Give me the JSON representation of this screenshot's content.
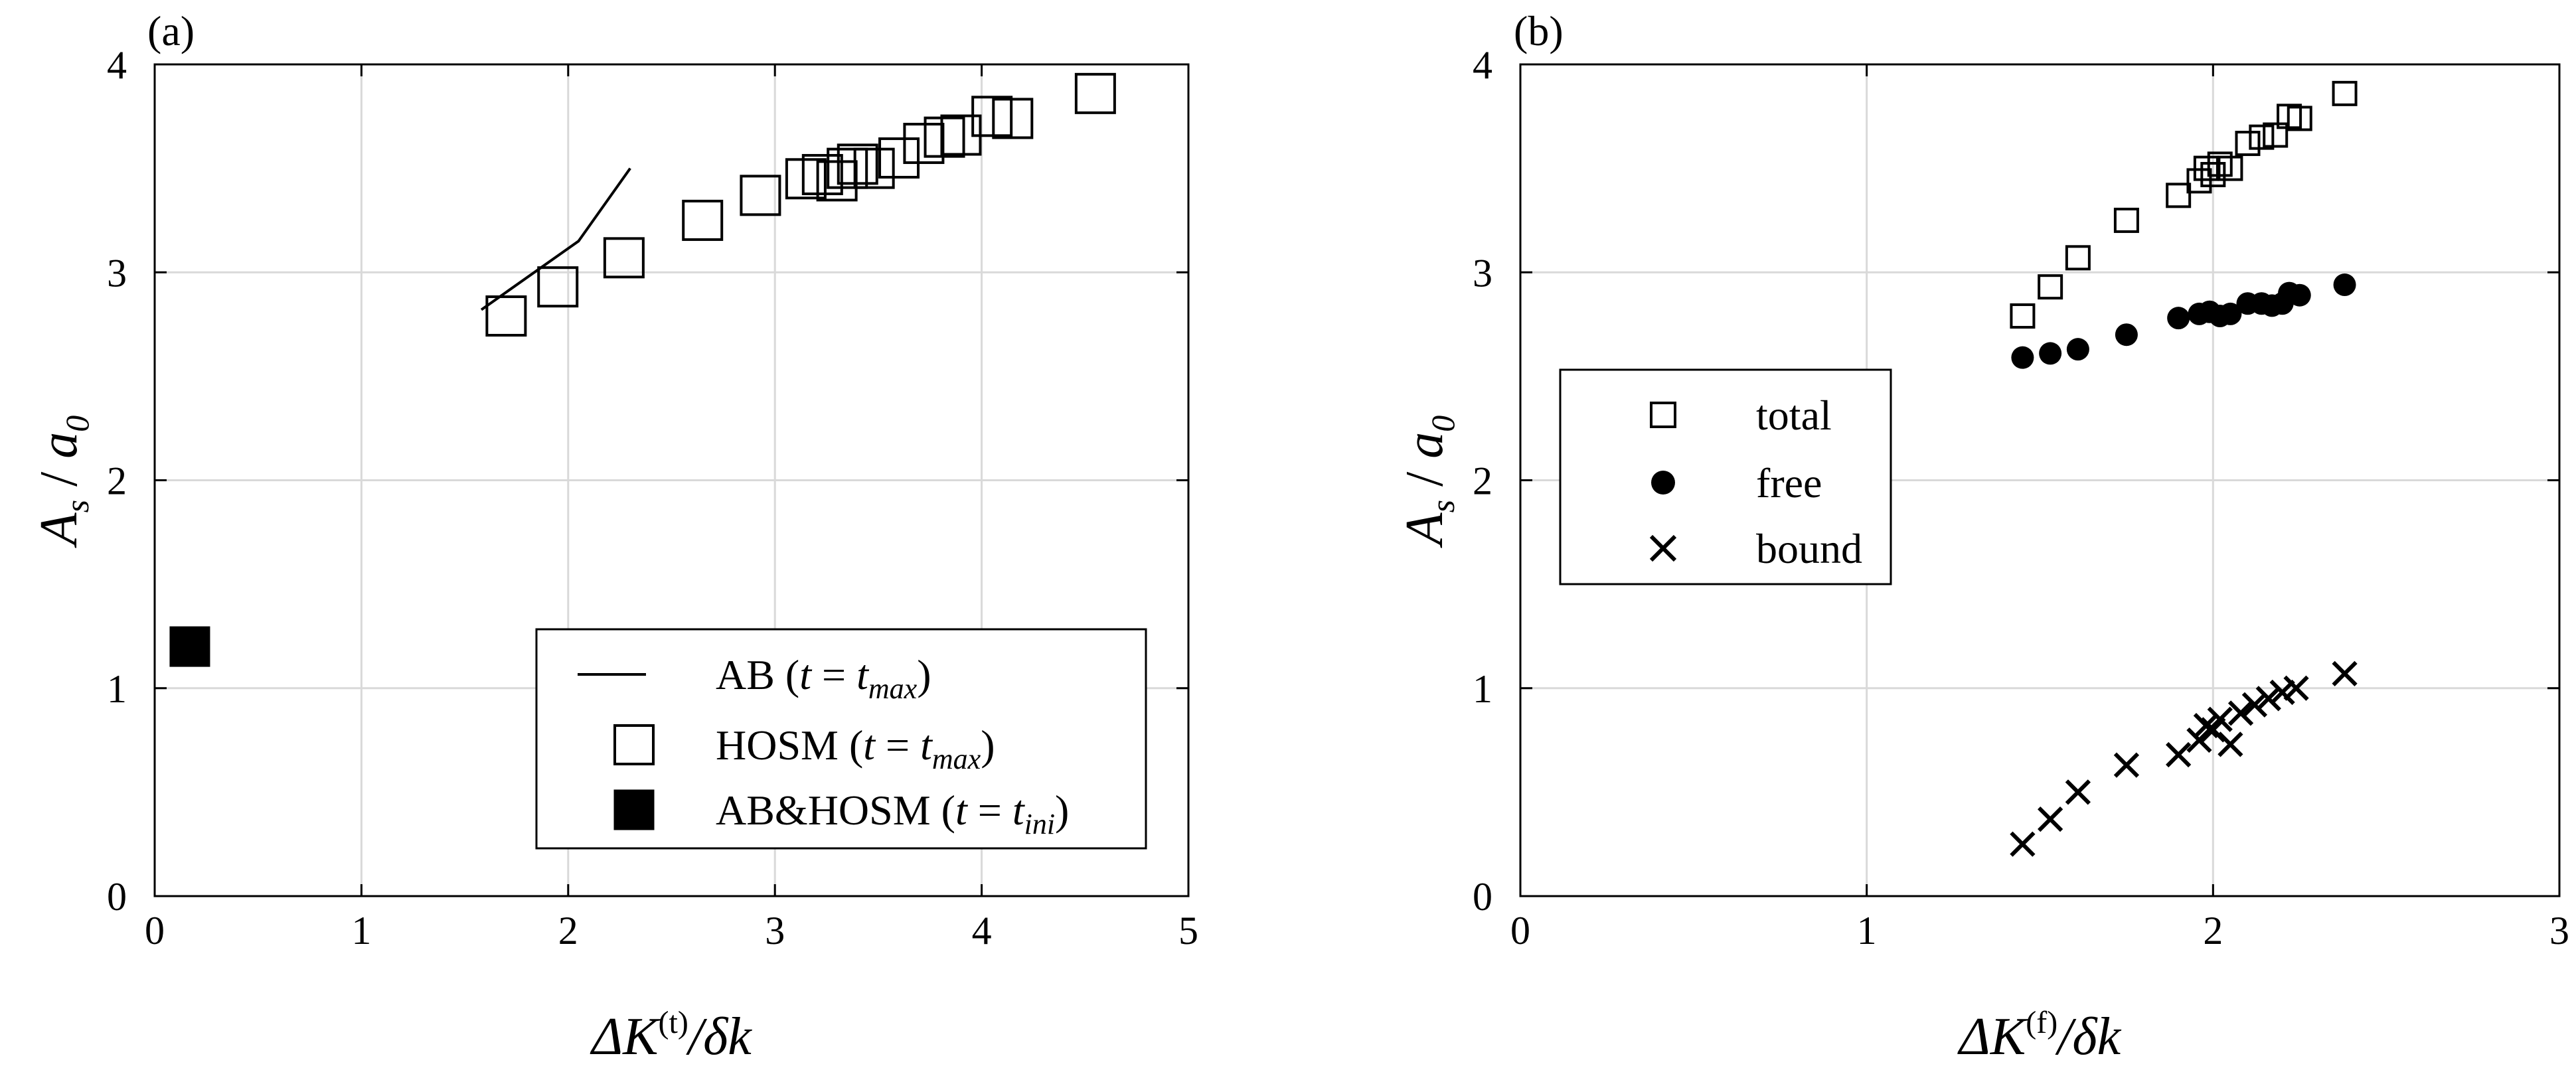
{
  "chart_data": [
    {
      "type": "scatter",
      "panel_label": "(a)",
      "xlabel": {
        "main": "ΔK",
        "sup": "(t)",
        "tail": "/δk"
      },
      "ylabel": {
        "a": "A",
        "a_sub": "s",
        "mid": " / ",
        "b": "a",
        "b_sub": "0"
      },
      "xlim": [
        0,
        5
      ],
      "ylim": [
        0,
        4
      ],
      "xticks": [
        0,
        1,
        2,
        3,
        4,
        5
      ],
      "yticks": [
        0,
        1,
        2,
        3,
        4
      ],
      "grid": true,
      "legend_position": "bottom-right",
      "series": [
        {
          "name": "AB (t = t_max)",
          "legend": {
            "pre": "AB (",
            "it1": "t",
            "mid": " = ",
            "it2": "t",
            "sub": "max",
            "post": ")"
          },
          "marker": "line",
          "x": [
            1.58,
            2.05,
            2.3
          ],
          "y": [
            2.82,
            3.15,
            3.5
          ]
        },
        {
          "name": "HOSM (t = t_max)",
          "legend": {
            "pre": "HOSM (",
            "it1": "t",
            "mid": " = ",
            "it2": "t",
            "sub": "max",
            "post": ")"
          },
          "marker": "open-square",
          "x": [
            1.7,
            1.95,
            2.27,
            2.65,
            2.93,
            3.15,
            3.23,
            3.3,
            3.35,
            3.4,
            3.48,
            3.6,
            3.72,
            3.82,
            3.9,
            4.05,
            4.15,
            4.55
          ],
          "y": [
            2.79,
            2.93,
            3.07,
            3.25,
            3.37,
            3.45,
            3.47,
            3.44,
            3.5,
            3.52,
            3.5,
            3.55,
            3.62,
            3.65,
            3.66,
            3.75,
            3.74,
            3.86
          ]
        },
        {
          "name": "AB&HOSM (t = t_ini)",
          "legend": {
            "pre": "AB&HOSM (",
            "it1": "t",
            "mid": " = ",
            "it2": "t",
            "sub": "ini",
            "post": ")"
          },
          "marker": "filled-square",
          "x": [
            0.17
          ],
          "y": [
            1.2
          ]
        }
      ]
    },
    {
      "type": "scatter",
      "panel_label": "(b)",
      "xlabel": {
        "main": "ΔK",
        "sup": "(f)",
        "tail": "/δk"
      },
      "ylabel": {
        "a": "A",
        "a_sub": "s",
        "mid": " / ",
        "b": "a",
        "b_sub": "0"
      },
      "xlim": [
        0,
        3
      ],
      "ylim": [
        0,
        4
      ],
      "xticks": [
        0,
        1,
        2,
        3
      ],
      "yticks": [
        0,
        1,
        2,
        3,
        4
      ],
      "grid": true,
      "legend_position": "middle-left",
      "series": [
        {
          "name": "total",
          "marker": "open-square",
          "x": [
            1.45,
            1.53,
            1.61,
            1.75,
            1.9,
            1.96,
            1.98,
            2.0,
            2.02,
            2.05,
            2.1,
            2.14,
            2.18,
            2.22,
            2.25,
            2.38
          ],
          "y": [
            2.79,
            2.93,
            3.07,
            3.25,
            3.37,
            3.44,
            3.5,
            3.47,
            3.52,
            3.5,
            3.62,
            3.65,
            3.66,
            3.75,
            3.74,
            3.86
          ]
        },
        {
          "name": "free",
          "marker": "filled-circle",
          "x": [
            1.45,
            1.53,
            1.61,
            1.75,
            1.9,
            1.96,
            1.99,
            2.02,
            2.05,
            2.1,
            2.14,
            2.17,
            2.2,
            2.22,
            2.25,
            2.38
          ],
          "y": [
            2.59,
            2.61,
            2.63,
            2.7,
            2.78,
            2.8,
            2.81,
            2.79,
            2.8,
            2.85,
            2.85,
            2.84,
            2.85,
            2.9,
            2.89,
            2.94
          ]
        },
        {
          "name": "bound",
          "marker": "x",
          "x": [
            1.45,
            1.53,
            1.61,
            1.75,
            1.9,
            1.96,
            1.98,
            2.0,
            2.02,
            2.05,
            2.08,
            2.12,
            2.16,
            2.2,
            2.24,
            2.38
          ],
          "y": [
            0.25,
            0.37,
            0.5,
            0.63,
            0.68,
            0.75,
            0.82,
            0.8,
            0.85,
            0.73,
            0.88,
            0.92,
            0.95,
            0.98,
            1.0,
            1.07
          ]
        }
      ]
    }
  ]
}
